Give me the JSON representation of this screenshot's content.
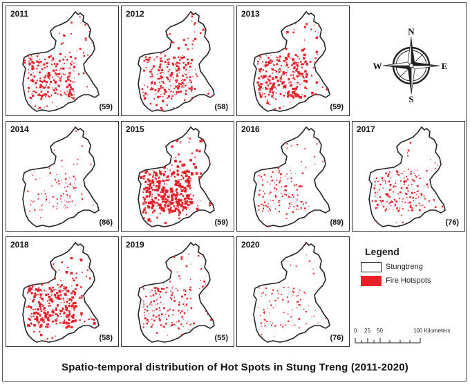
{
  "title": "Spatio-temporal distribution of Hot Spots in Stung Treng (2011-2020)",
  "colors": {
    "hotspot": "#e8202a",
    "province_fill": "#ffffff",
    "outline": "#222222"
  },
  "panels": [
    {
      "year": "2011",
      "count": "(59)",
      "density": 0.55
    },
    {
      "year": "2012",
      "count": "(58)",
      "density": 0.55
    },
    {
      "year": "2013",
      "count": "(59)",
      "density": 0.7
    },
    {
      "year": "2014",
      "count": "(86)",
      "density": 0.12
    },
    {
      "year": "2015",
      "count": "(59)",
      "density": 0.9
    },
    {
      "year": "2016",
      "count": "(89)",
      "density": 0.2
    },
    {
      "year": "2017",
      "count": "(76)",
      "density": 0.35
    },
    {
      "year": "2018",
      "count": "(58)",
      "density": 0.75
    },
    {
      "year": "2019",
      "count": "(55)",
      "density": 0.35
    },
    {
      "year": "2020",
      "count": "(76)",
      "density": 0.12
    }
  ],
  "compass": {
    "n": "N",
    "s": "S",
    "e": "E",
    "w": "W"
  },
  "legend": {
    "title": "Legend",
    "items": [
      {
        "label": "Stungtreng",
        "color": "#ffffff"
      },
      {
        "label": "Fire Hotspots",
        "color": "#e8202a"
      }
    ]
  },
  "scale": {
    "labels": [
      "0",
      "25",
      "50",
      "100 Kilometers"
    ]
  }
}
